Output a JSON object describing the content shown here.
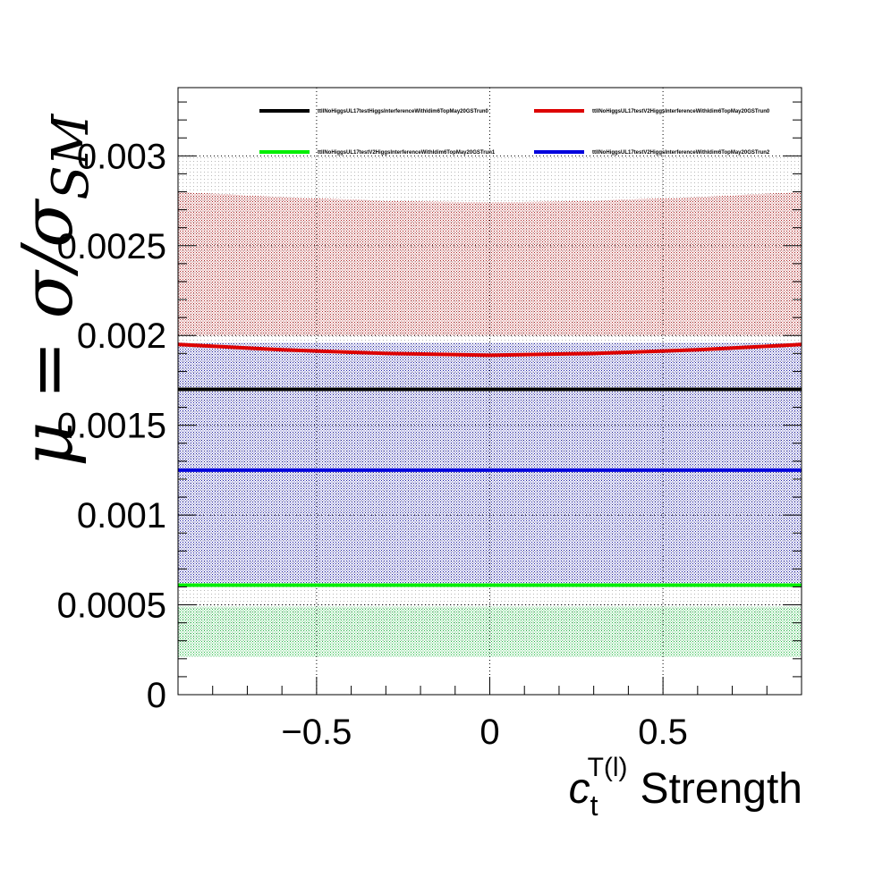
{
  "chart_data": {
    "type": "line",
    "xlabel": "Strength",
    "xlabel_symbol": "c",
    "xlabel_sub": "t",
    "xlabel_sup": "T(l)",
    "ylabel": "μ = σ/σ",
    "ylabel_sub": "SM",
    "xlim": [
      -0.9,
      0.9
    ],
    "ylim": [
      0,
      0.00338
    ],
    "x_ticks": [
      -0.5,
      0,
      0.5
    ],
    "x_tick_labels": [
      "−0.5",
      "0",
      "0.5"
    ],
    "y_ticks": [
      0,
      0.0005,
      0.001,
      0.0015,
      0.002,
      0.0025,
      0.003
    ],
    "y_tick_labels": [
      "0",
      "0.0005",
      "0.001",
      "0.0015",
      "0.002",
      "0.0025",
      "0.003"
    ],
    "grid": true,
    "legend_position": "top",
    "x": [
      -0.9,
      -0.6,
      -0.3,
      0,
      0.3,
      0.6,
      0.9
    ],
    "series": [
      {
        "name": "ttllNoHiggsUL17testHiggsInterferenceWithIdim6TopMay20GSTrun0",
        "color": "#000000",
        "values": [
          0.0017,
          0.0017,
          0.0017,
          0.0017,
          0.0017,
          0.0017,
          0.0017
        ],
        "band_low": [
          0.0003,
          0.0003,
          0.0003,
          0.0003,
          0.0003,
          0.0003,
          0.0003
        ],
        "band_high": [
          0.003,
          0.003,
          0.003,
          0.003,
          0.003,
          0.003,
          0.003
        ],
        "band_color": "#333333"
      },
      {
        "name": "ttllNoHiggsUL17testV2HiggsInterferenceWithIdim6TopMay20GSTrun0",
        "color": "#dd0000",
        "values": [
          0.00195,
          0.00192,
          0.0019,
          0.00189,
          0.0019,
          0.00192,
          0.00195
        ],
        "band_low": [
          0.002,
          0.002,
          0.002,
          0.002,
          0.002,
          0.002,
          0.002
        ],
        "band_high": [
          0.0028,
          0.00277,
          0.00275,
          0.00274,
          0.00275,
          0.00277,
          0.0028
        ],
        "band_color": "#b02020"
      },
      {
        "name": "ttllNoHiggsUL17testV2HiggsInterferenceWithIdim6TopMay20GSTrun1",
        "color": "#00ee00",
        "values": [
          0.00061,
          0.00061,
          0.00061,
          0.00061,
          0.00061,
          0.00061,
          0.00061
        ],
        "band_low": [
          0.00021,
          0.00021,
          0.00021,
          0.00021,
          0.00021,
          0.00021,
          0.00021
        ],
        "band_high": [
          0.00049,
          0.00049,
          0.00049,
          0.00049,
          0.00049,
          0.00049,
          0.00049
        ],
        "band_color": "#22bb44"
      },
      {
        "name": "ttllNoHiggsUL17testV2HiggsInterferenceWithIdim6TopMay20GSTrun2",
        "color": "#0000dd",
        "values": [
          0.00125,
          0.00125,
          0.00125,
          0.00125,
          0.00125,
          0.00125,
          0.00125
        ],
        "band_low": [
          0.0006,
          0.0006,
          0.0006,
          0.0006,
          0.0006,
          0.0006,
          0.0006
        ],
        "band_high": [
          0.00196,
          0.00196,
          0.00196,
          0.00196,
          0.00196,
          0.00196,
          0.00196
        ],
        "band_color": "#1a1aa6"
      }
    ]
  }
}
